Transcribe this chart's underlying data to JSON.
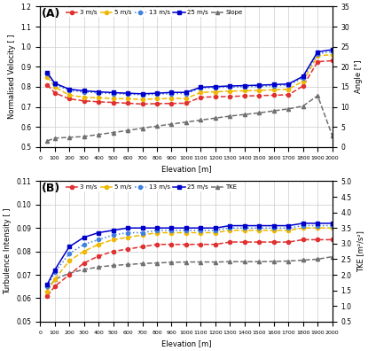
{
  "elevation": [
    50,
    100,
    200,
    300,
    400,
    500,
    600,
    700,
    800,
    900,
    1000,
    1100,
    1200,
    1300,
    1400,
    1500,
    1600,
    1700,
    1800,
    1900,
    2000
  ],
  "A_3ms": [
    0.81,
    0.77,
    0.74,
    0.73,
    0.725,
    0.722,
    0.718,
    0.714,
    0.716,
    0.717,
    0.718,
    0.748,
    0.75,
    0.752,
    0.754,
    0.756,
    0.758,
    0.76,
    0.804,
    0.925,
    0.93
  ],
  "A_5ms": [
    0.85,
    0.8,
    0.758,
    0.748,
    0.745,
    0.742,
    0.74,
    0.737,
    0.74,
    0.742,
    0.742,
    0.772,
    0.775,
    0.778,
    0.78,
    0.782,
    0.785,
    0.788,
    0.828,
    0.955,
    0.96
  ],
  "A_13ms": [
    0.865,
    0.812,
    0.782,
    0.774,
    0.77,
    0.766,
    0.763,
    0.76,
    0.763,
    0.766,
    0.766,
    0.793,
    0.796,
    0.798,
    0.8,
    0.802,
    0.805,
    0.808,
    0.845,
    0.965,
    0.975
  ],
  "A_25ms": [
    0.87,
    0.818,
    0.788,
    0.78,
    0.775,
    0.771,
    0.768,
    0.765,
    0.768,
    0.772,
    0.772,
    0.798,
    0.801,
    0.804,
    0.806,
    0.808,
    0.811,
    0.814,
    0.852,
    0.974,
    0.985
  ],
  "A_slope_deg": [
    1.5,
    2.2,
    2.4,
    2.6,
    3.1,
    3.6,
    4.1,
    4.7,
    5.2,
    5.7,
    6.2,
    6.7,
    7.2,
    7.7,
    8.1,
    8.5,
    9.0,
    9.5,
    10.2,
    12.8,
    2.8
  ],
  "B_3ms": [
    0.061,
    0.065,
    0.07,
    0.075,
    0.078,
    0.08,
    0.081,
    0.082,
    0.083,
    0.083,
    0.083,
    0.083,
    0.083,
    0.084,
    0.084,
    0.084,
    0.084,
    0.084,
    0.085,
    0.085,
    0.085
  ],
  "B_5ms": [
    0.063,
    0.068,
    0.076,
    0.08,
    0.083,
    0.085,
    0.086,
    0.087,
    0.088,
    0.088,
    0.088,
    0.088,
    0.088,
    0.089,
    0.089,
    0.089,
    0.089,
    0.089,
    0.09,
    0.09,
    0.09
  ],
  "B_13ms": [
    0.065,
    0.071,
    0.079,
    0.083,
    0.085,
    0.087,
    0.088,
    0.088,
    0.089,
    0.089,
    0.089,
    0.089,
    0.089,
    0.09,
    0.09,
    0.09,
    0.09,
    0.09,
    0.091,
    0.091,
    0.091
  ],
  "B_25ms": [
    0.066,
    0.072,
    0.082,
    0.086,
    0.088,
    0.089,
    0.09,
    0.09,
    0.09,
    0.09,
    0.09,
    0.09,
    0.09,
    0.091,
    0.091,
    0.091,
    0.091,
    0.091,
    0.092,
    0.092,
    0.092
  ],
  "B_tke_right": [
    1.5,
    1.85,
    2.05,
    2.17,
    2.25,
    2.3,
    2.33,
    2.36,
    2.38,
    2.4,
    2.41,
    2.41,
    2.41,
    2.42,
    2.42,
    2.42,
    2.43,
    2.44,
    2.47,
    2.5,
    2.58
  ],
  "color_3ms": "#e03030",
  "color_5ms": "#f0b800",
  "color_13ms": "#4080e0",
  "color_25ms": "#0000cc",
  "color_gray": "#707070",
  "A_ylabel": "Normalised Velocity [ ]",
  "A_ylabel2": "Angle [°]",
  "A_ylim": [
    0.5,
    1.2
  ],
  "A_ylim2": [
    0,
    35
  ],
  "A_yticks": [
    0.5,
    0.6,
    0.7,
    0.8,
    0.9,
    1.0,
    1.1,
    1.2
  ],
  "A_yticks2": [
    0,
    5,
    10,
    15,
    20,
    25,
    30,
    35
  ],
  "B_ylabel": "Turbulence Intensity [ ]",
  "B_ylabel2": "TKE [m²/s²]",
  "B_ylim": [
    0.05,
    0.11
  ],
  "B_ylim2": [
    0.5,
    5.0
  ],
  "B_yticks": [
    0.05,
    0.06,
    0.07,
    0.08,
    0.09,
    0.1,
    0.11
  ],
  "B_yticks2": [
    0.5,
    1.0,
    1.5,
    2.0,
    2.5,
    3.0,
    3.5,
    4.0,
    4.5,
    5.0
  ],
  "xlabel": "Elevation [m]",
  "xlim": [
    0,
    2000
  ],
  "xticks": [
    0,
    100,
    200,
    300,
    400,
    500,
    600,
    700,
    800,
    900,
    1000,
    1100,
    1200,
    1300,
    1400,
    1500,
    1600,
    1700,
    1800,
    1900,
    2000
  ],
  "legend_A": [
    "3 m/s",
    "5 m/s",
    "13 m/s",
    "25 m/s",
    "Slope"
  ],
  "legend_B": [
    "3 m/s",
    "5 m/s",
    "13 m/s",
    "25 m/s",
    "TKE"
  ],
  "panel_A_label": "(A)",
  "panel_B_label": "(B)"
}
